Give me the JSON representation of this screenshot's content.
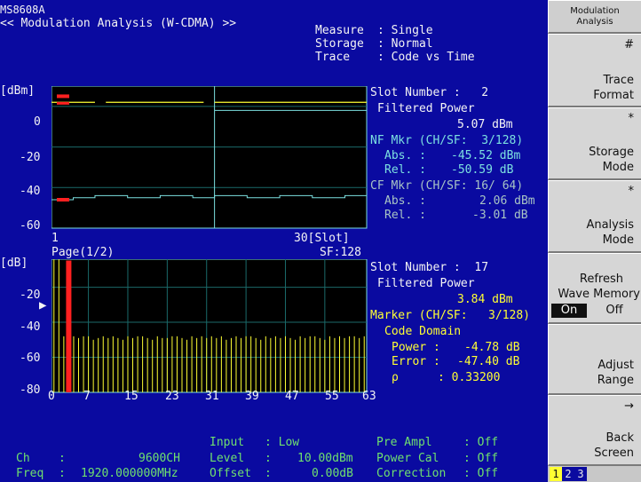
{
  "header": {
    "model": "MS8608A",
    "title": "<< Modulation Analysis (W-CDMA) >>",
    "measure_label": "Measure",
    "measure_value": ": Single",
    "storage_label": "Storage",
    "storage_value": ": Normal",
    "trace_label": "Trace",
    "trace_value": ": Code vs Time"
  },
  "upper_graph": {
    "unit": "[dBm]",
    "y_ticks": [
      "0",
      "-20",
      "-40",
      "-60"
    ],
    "x_start": "1",
    "x_end": "30[Slot]",
    "slot_number": "Slot Number :   2",
    "filtered_power_label": "Filtered Power",
    "filtered_power_value": "5.07 dBm",
    "nf_mkr": "NF Mkr (CH/SF:  3/128)",
    "nf_abs_label": "Abs. :",
    "nf_abs_value": "-45.52 dBm",
    "nf_rel_label": "Rel. :",
    "nf_rel_value": "-50.59 dB",
    "cf_mkr": "CF Mkr (CH/SF: 16/ 64)",
    "cf_abs_label": "Abs. :",
    "cf_abs_value": "2.06 dBm",
    "cf_rel_label": "Rel. :",
    "cf_rel_value": "-3.01 dB"
  },
  "lower_graph": {
    "unit": "[dB]",
    "page": "Page(1/2)",
    "sf": "SF:128",
    "y_ticks": [
      "-20",
      "-40",
      "-60",
      "-80"
    ],
    "x_ticks": [
      "0",
      "7",
      "15",
      "23",
      "31",
      "39",
      "47",
      "55",
      "63"
    ],
    "slot_number": "Slot Number :  17",
    "filtered_power_label": "Filtered Power",
    "filtered_power_value": "3.84 dBm",
    "marker": "Marker (CH/SF:   3/128)",
    "code_domain": "Code Domain",
    "power_label": "Power :",
    "power_value": "-4.78 dB",
    "error_label": "Error :",
    "error_value": "-47.40 dB",
    "rho_label": "ρ",
    "rho_value": ": 0.33200"
  },
  "footer": {
    "input_label": "Input",
    "input_value": ": Low",
    "level_label": "Level",
    "level_value": "10.00dBm",
    "offset_label": "Offset",
    "offset_value": "0.00dB",
    "ch_label": "Ch",
    "ch_value": "9600CH",
    "freq_label": "Freq",
    "freq_value": "1920.000000MHz",
    "pre_ampl_label": "Pre Ampl",
    "pre_ampl_value": ": Off",
    "power_cal_label": "Power Cal",
    "power_cal_value": ": Off",
    "correction_label": "Correction",
    "correction_value": ": Off"
  },
  "softkeys": {
    "menu_title_1": "Modulation",
    "menu_title_2": "Analysis",
    "key1_mark": "#",
    "key1_line1": "Trace",
    "key1_line2": "Format",
    "key2_mark": "*",
    "key2_line1": "Storage",
    "key2_line2": "Mode",
    "key3_mark": "*",
    "key3_line1": "Analysis",
    "key3_line2": "Mode",
    "key4_line1": "Refresh",
    "key4_line2": "Wave Memory",
    "key4_on": "On",
    "key4_off": "Off",
    "key5_line1": "Adjust",
    "key5_line2": "Range",
    "key6_mark": "→",
    "key6_line1": "Back",
    "key6_line2": "Screen",
    "pages": [
      "1",
      "2",
      "3"
    ]
  },
  "chart_data": [
    {
      "type": "line",
      "ylabel": "[dBm]",
      "xlabel": "[Slot]",
      "xlim": [
        1,
        30
      ],
      "ylim": [
        -60,
        10
      ],
      "series": [
        {
          "color": "#ffff33",
          "x": [
            1,
            5,
            6,
            15,
            16,
            30
          ],
          "values": [
            2,
            2,
            2,
            2,
            2,
            2
          ]
        },
        {
          "color": "#7ce0e0",
          "x": [
            16,
            30
          ],
          "values": [
            -2,
            -2
          ]
        },
        {
          "color": "#7ce0e0",
          "x": [
            1,
            3,
            5,
            8,
            11,
            14,
            16,
            19,
            22,
            25,
            28,
            30
          ],
          "values": [
            -46,
            -45,
            -44,
            -45,
            -44,
            -45,
            -44,
            -45,
            -44,
            -45,
            -44,
            -44
          ]
        }
      ],
      "markers": [
        {
          "color": "#ff2020",
          "x": 1,
          "y": 5
        },
        {
          "color": "#ff2020",
          "x": 1,
          "y": -46
        }
      ]
    },
    {
      "type": "bar",
      "ylabel": "[dB]",
      "xlim": [
        0,
        63
      ],
      "ylim": [
        -80,
        -4
      ],
      "highlight": {
        "x": 3,
        "value": -4.78,
        "color": "#ff2020"
      },
      "values": [
        -4,
        -4,
        -48,
        -4.78,
        -48,
        -49,
        -48,
        -48,
        -50,
        -49,
        -48,
        -49,
        -48,
        -49,
        -50,
        -48,
        -49,
        -48,
        -48,
        -49,
        -50,
        -48,
        -49,
        -49,
        -48,
        -48,
        -49,
        -50,
        -48,
        -49,
        -48,
        -49,
        -48,
        -49,
        -48,
        -50,
        -49,
        -48,
        -49,
        -48,
        -48,
        -49,
        -50,
        -48,
        -49,
        -48,
        -49,
        -48,
        -49,
        -50,
        -48,
        -49,
        -48,
        -48,
        -49,
        -50,
        -48,
        -49,
        -48,
        -49,
        -48,
        -48,
        -49,
        -48
      ]
    }
  ]
}
